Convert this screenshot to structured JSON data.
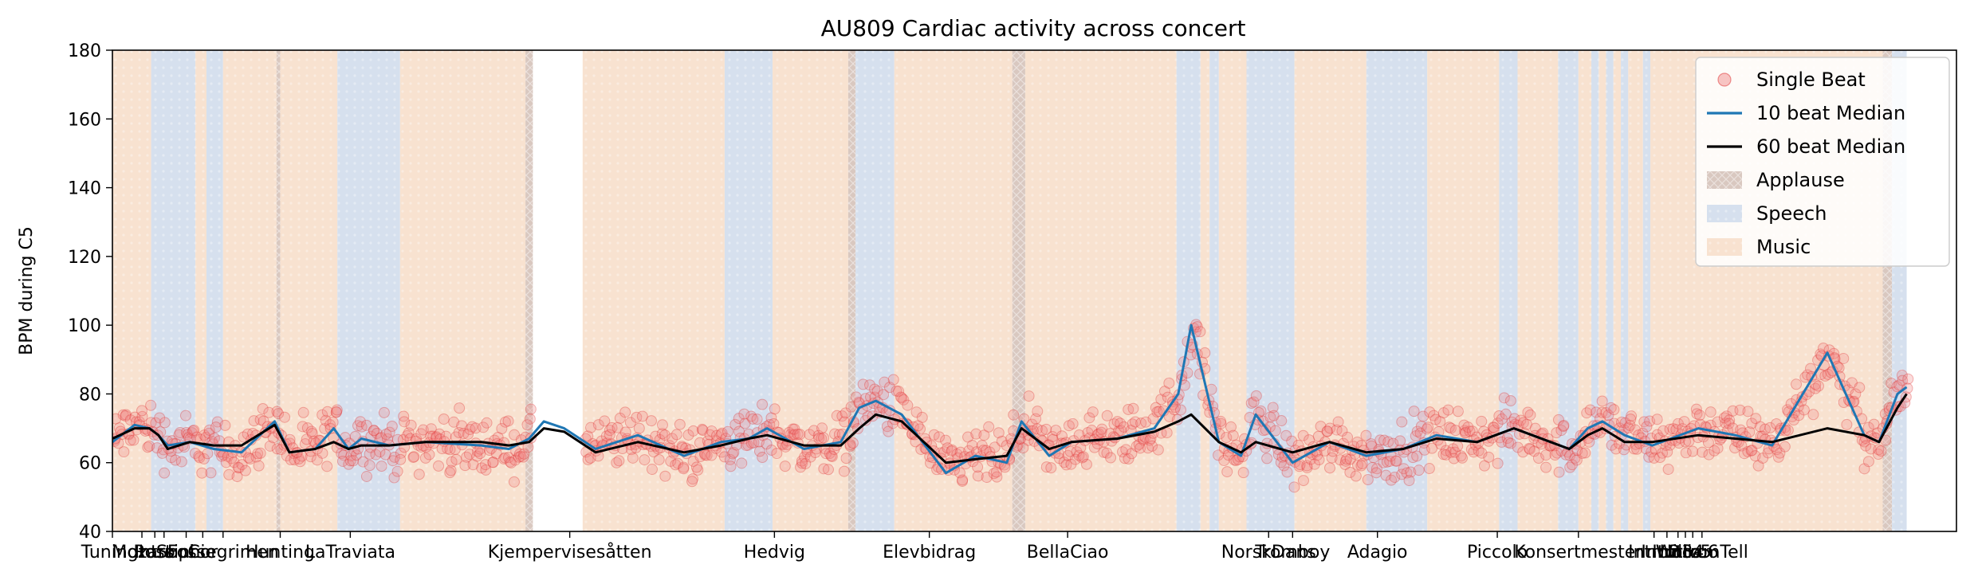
{
  "chart_data": {
    "type": "scatter",
    "title": "AU809 Cardiac activity across concert",
    "ylabel": "BPM during C5",
    "xlabel": "",
    "ylim": [
      40,
      180
    ],
    "xlim": [
      0,
      1000
    ],
    "yticks": [
      40,
      60,
      80,
      100,
      120,
      140,
      160,
      180
    ],
    "grid": false,
    "legend_position": "top-right",
    "legend": [
      {
        "label": "Single Beat",
        "kind": "marker",
        "color": "#f08080"
      },
      {
        "label": "10 beat Median",
        "kind": "line",
        "color": "#1f77b4"
      },
      {
        "label": "60 beat Median",
        "kind": "line",
        "color": "#000000"
      },
      {
        "label": "Applause",
        "kind": "patch",
        "color": "#d9c8c0"
      },
      {
        "label": "Speech",
        "kind": "patch",
        "color": "#d6e0ee"
      },
      {
        "label": "Music",
        "kind": "patch",
        "color": "#f8e2d0"
      }
    ],
    "xticks": [
      {
        "label": "TuningI",
        "x": 0.0
      },
      {
        "label": "Mozart",
        "x": 16.0
      },
      {
        "label": "Intro",
        "x": 23.0
      },
      {
        "label": "Rossini",
        "x": 28.0
      },
      {
        "label": "Sophie",
        "x": 40.0
      },
      {
        "label": "Cor",
        "x": 49.0
      },
      {
        "label": "Fossegrimen",
        "x": 60.0
      },
      {
        "label": "Hunting",
        "x": 91.0
      },
      {
        "label": "LaTraviata",
        "x": 129.0
      },
      {
        "label": "Kjempervisesåtten",
        "x": 248.0
      },
      {
        "label": "Hedvig",
        "x": 359.0
      },
      {
        "label": "Elevbidrag",
        "x": 443.0
      },
      {
        "label": "BellaCiao",
        "x": 518.0
      },
      {
        "label": "NorskDans",
        "x": 627.0
      },
      {
        "label": "Tromboy",
        "x": 640.0
      },
      {
        "label": "Adagio",
        "x": 686.0
      },
      {
        "label": "Piccolo",
        "x": 751.0
      },
      {
        "label": "Konsertmester",
        "x": 795.0
      },
      {
        "label": "Intro2",
        "x": 836.0
      },
      {
        "label": "Intro3",
        "x": 843.0
      },
      {
        "label": "Intro4",
        "x": 849.0
      },
      {
        "label": "Intro5",
        "x": 853.0
      },
      {
        "label": "Intro6",
        "x": 857.0
      },
      {
        "label": "WilliamTell",
        "x": 862.0
      }
    ],
    "regions": [
      {
        "type": "Music",
        "start": 0,
        "end": 21
      },
      {
        "type": "Speech",
        "start": 21,
        "end": 45
      },
      {
        "type": "Music",
        "start": 45,
        "end": 51
      },
      {
        "type": "Speech",
        "start": 51,
        "end": 60
      },
      {
        "type": "Music",
        "start": 60,
        "end": 89
      },
      {
        "type": "Applause",
        "start": 89,
        "end": 91
      },
      {
        "type": "Music",
        "start": 91,
        "end": 122
      },
      {
        "type": "Speech",
        "start": 122,
        "end": 156
      },
      {
        "type": "Music",
        "start": 156,
        "end": 224
      },
      {
        "type": "Applause",
        "start": 224,
        "end": 228
      },
      {
        "type": "Music",
        "start": 255,
        "end": 332
      },
      {
        "type": "Speech",
        "start": 332,
        "end": 358
      },
      {
        "type": "Music",
        "start": 358,
        "end": 399
      },
      {
        "type": "Applause",
        "start": 399,
        "end": 403
      },
      {
        "type": "Speech",
        "start": 403,
        "end": 424
      },
      {
        "type": "Music",
        "start": 424,
        "end": 488
      },
      {
        "type": "Applause",
        "start": 488,
        "end": 495
      },
      {
        "type": "Music",
        "start": 495,
        "end": 577
      },
      {
        "type": "Speech",
        "start": 577,
        "end": 590
      },
      {
        "type": "Music",
        "start": 590,
        "end": 595
      },
      {
        "type": "Speech",
        "start": 595,
        "end": 600
      },
      {
        "type": "Music",
        "start": 600,
        "end": 615
      },
      {
        "type": "Speech",
        "start": 615,
        "end": 641
      },
      {
        "type": "Music",
        "start": 641,
        "end": 680
      },
      {
        "type": "Speech",
        "start": 680,
        "end": 713
      },
      {
        "type": "Music",
        "start": 713,
        "end": 752
      },
      {
        "type": "Speech",
        "start": 752,
        "end": 762
      },
      {
        "type": "Music",
        "start": 762,
        "end": 784
      },
      {
        "type": "Speech",
        "start": 784,
        "end": 795
      },
      {
        "type": "Music",
        "start": 795,
        "end": 802
      },
      {
        "type": "Speech",
        "start": 802,
        "end": 806
      },
      {
        "type": "Music",
        "start": 806,
        "end": 810
      },
      {
        "type": "Speech",
        "start": 810,
        "end": 814
      },
      {
        "type": "Music",
        "start": 814,
        "end": 818
      },
      {
        "type": "Speech",
        "start": 818,
        "end": 822
      },
      {
        "type": "Music",
        "start": 822,
        "end": 830
      },
      {
        "type": "Speech",
        "start": 830,
        "end": 834
      },
      {
        "type": "Music",
        "start": 834,
        "end": 960
      },
      {
        "type": "Applause",
        "start": 960,
        "end": 965
      },
      {
        "type": "Speech",
        "start": 965,
        "end": 973
      }
    ],
    "x": [
      0,
      12,
      20,
      25,
      30,
      42,
      55,
      70,
      88,
      96,
      110,
      120,
      128,
      135,
      150,
      170,
      200,
      215,
      226,
      234,
      245,
      262,
      285,
      310,
      330,
      345,
      355,
      375,
      395,
      405,
      414,
      428,
      452,
      468,
      485,
      493,
      508,
      520,
      545,
      565,
      578,
      585,
      600,
      612,
      620,
      640,
      660,
      680,
      700,
      718,
      740,
      760,
      790,
      800,
      808,
      820,
      835,
      860,
      880,
      900,
      930,
      950,
      958,
      968,
      973
    ],
    "series": [
      {
        "name": "10 beat Median",
        "values": [
          66,
          71,
          70,
          68,
          65,
          66,
          64,
          63,
          72,
          63,
          64,
          70,
          64,
          67,
          65,
          66,
          65,
          64,
          67,
          72,
          70,
          64,
          68,
          62,
          66,
          67,
          70,
          64,
          66,
          76,
          78,
          74,
          57,
          62,
          60,
          72,
          62,
          66,
          67,
          70,
          80,
          100,
          66,
          62,
          74,
          60,
          66,
          62,
          64,
          68,
          66,
          70,
          64,
          70,
          72,
          68,
          65,
          70,
          68,
          65,
          92,
          68,
          66,
          80,
          82
        ]
      },
      {
        "name": "60 beat Median",
        "values": [
          67,
          70,
          70,
          68,
          64,
          66,
          65,
          65,
          71,
          63,
          64,
          66,
          64,
          65,
          65,
          66,
          66,
          65,
          66,
          70,
          69,
          63,
          66,
          63,
          65,
          67,
          68,
          65,
          65,
          70,
          74,
          72,
          60,
          61,
          62,
          70,
          64,
          66,
          67,
          69,
          72,
          74,
          66,
          63,
          66,
          63,
          66,
          63,
          64,
          67,
          66,
          70,
          64,
          68,
          70,
          66,
          66,
          68,
          67,
          66,
          70,
          68,
          66,
          76,
          80
        ]
      }
    ]
  }
}
